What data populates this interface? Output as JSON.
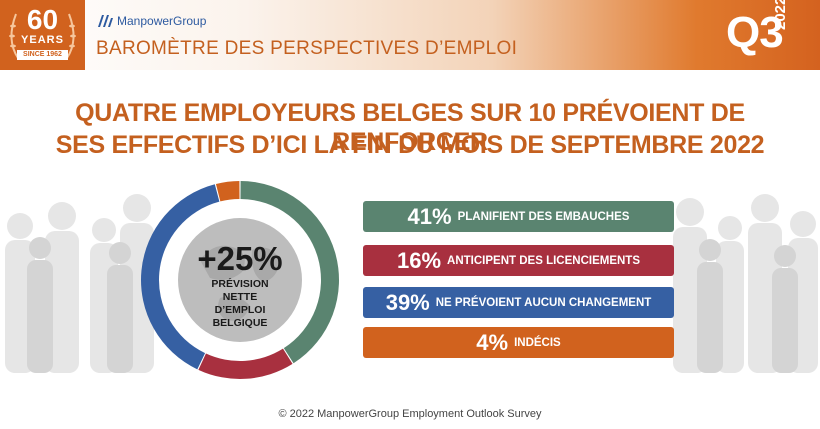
{
  "badge": {
    "number": "60",
    "word": "YEARS",
    "since": "SINCE 1962"
  },
  "header": {
    "logo": "ManpowerGroup",
    "subtitle": "BAROMÈTRE DES PERSPECTIVES D’EMPLOI",
    "quarter": "Q3",
    "year": "2022"
  },
  "headline": {
    "line1": "QUATRE EMPLOYEURS BELGES SUR 10 PRÉVOIENT DE RENFORCER",
    "line2": "SES EFFECTIFS D’ICI LA FIN DU MOIS DE SEPTEMBRE 2022"
  },
  "center": {
    "value": "+25%",
    "label1": "PRÉVISION",
    "label2": "NETTE",
    "label3": "D’EMPLOI",
    "label4": "BELGIQUE"
  },
  "chart_data": {
    "type": "pie",
    "categories": [
      "PLANIFIENT DES EMBAUCHES",
      "ANTICIPENT DES LICENCIEMENTS",
      "NE PRÉVOIENT AUCUN CHANGEMENT",
      "INDÉCIS"
    ],
    "values": [
      41,
      16,
      39,
      4
    ],
    "colors": [
      "#5a8470",
      "#a8303f",
      "#3660a3",
      "#d1621e"
    ],
    "value_labels": [
      "41%",
      "16%",
      "39%",
      "4%"
    ],
    "title": "BAROMÈTRE DES PERSPECTIVES D’EMPLOI"
  },
  "footer": "© 2022 ManpowerGroup Employment Outlook Survey"
}
